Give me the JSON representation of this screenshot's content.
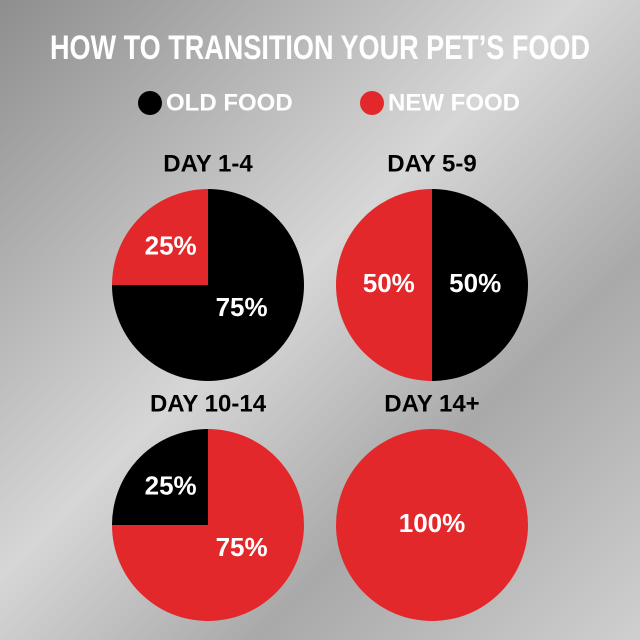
{
  "title": "HOW TO TRANSITION YOUR PET’S FOOD",
  "legend": [
    {
      "name": "OLD FOOD",
      "color": "#000000"
    },
    {
      "name": "NEW FOOD",
      "color": "#e2282b"
    }
  ],
  "chart_data": [
    {
      "type": "pie",
      "title": "DAY 1-4",
      "values": [
        75,
        25
      ],
      "value_labels": [
        "75%",
        "25%"
      ],
      "colors": [
        "#000000",
        "#e2282b"
      ]
    },
    {
      "type": "pie",
      "title": "DAY 5-9",
      "values": [
        50,
        50
      ],
      "value_labels": [
        "50%",
        "50%"
      ],
      "colors": [
        "#000000",
        "#e2282b"
      ]
    },
    {
      "type": "pie",
      "title": "DAY 10-14",
      "values": [
        75,
        25
      ],
      "value_labels": [
        "75%",
        "25%"
      ],
      "colors": [
        "#e2282b",
        "#000000"
      ]
    },
    {
      "type": "pie",
      "title": "DAY 14+",
      "values": [
        100
      ],
      "value_labels": [
        "100%"
      ],
      "colors": [
        "#e2282b"
      ]
    }
  ]
}
